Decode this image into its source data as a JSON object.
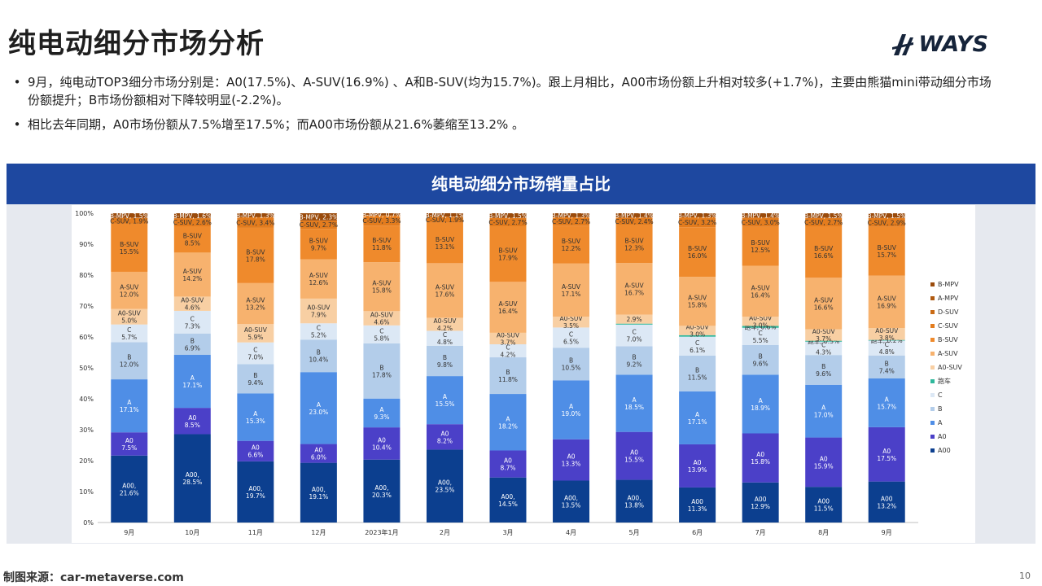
{
  "slide": {
    "title": "纯电动细分市场分析",
    "logo_text": "WAYS",
    "bullets": [
      "9月，纯电动TOP3细分市场分别是：A0(17.5%)、A-SUV(16.9%) 、A和B-SUV(均为15.7%)。跟上月相比，A00市场份额上升相对较多(+1.7%)，主要由熊猫mini带动细分市场份额提升；B市场份额相对下降较明显(-2.2%)。",
      "相比去年同期，A0市场份额从7.5%增至17.5%；而A00市场份额从21.6%萎缩至13.2% 。"
    ],
    "bullet_symbol": "•",
    "chart_header": "纯电动细分市场销量占比",
    "footer_source": "制图来源：car-metaverse.com",
    "page_number": "10"
  },
  "colors": {
    "header_bg": "#1e48a0",
    "panel_bg": "#e6e9ef",
    "logo": "#16243a"
  },
  "chart_data": {
    "type": "bar",
    "stacked": true,
    "percent": true,
    "categories": [
      "9月",
      "10月",
      "11月",
      "12月",
      "2023年1月",
      "2月",
      "3月",
      "4月",
      "5月",
      "6月",
      "7月",
      "8月",
      "9月"
    ],
    "yticks": [
      "0%",
      "10%",
      "20%",
      "30%",
      "40%",
      "50%",
      "60%",
      "70%",
      "80%",
      "90%",
      "100%"
    ],
    "ylim": [
      0,
      100
    ],
    "legend_position": "right",
    "series": [
      {
        "name": "A00",
        "color": "#0c3f8f",
        "text": "#ffffff",
        "values": [
          21.6,
          28.5,
          19.7,
          19.1,
          20.3,
          23.5,
          14.5,
          13.5,
          13.8,
          11.3,
          12.9,
          11.5,
          13.2
        ],
        "labels": [
          "A00,\n21.6%",
          "A00,\n28.5%",
          "A00,\n19.7%",
          "A00,\n19.1%",
          "A00,\n20.3%",
          "A00,\n23.5%",
          "A00,\n14.5%",
          "A00,\n13.5%",
          "A00,\n13.8%",
          "A00\n11.3%",
          "A00\n12.9%",
          "A00\n11.5%",
          "A00\n13.2%"
        ]
      },
      {
        "name": "A0",
        "color": "#4b40c8",
        "text": "#ffffff",
        "values": [
          7.5,
          8.5,
          6.6,
          6.0,
          10.4,
          8.2,
          8.7,
          13.3,
          15.5,
          13.9,
          15.8,
          15.9,
          17.5
        ],
        "labels": [
          "A0\n7.5%",
          "A0\n8.5%",
          "A0\n6.6%",
          "A0\n6.0%",
          "A0\n10.4%",
          "A0\n8.2%",
          "A0\n8.7%",
          "A0\n13.3%",
          "A0\n15.5%",
          "A0\n13.9%",
          "A0\n15.8%",
          "A0\n15.9%",
          "A0\n17.5%"
        ]
      },
      {
        "name": "A",
        "color": "#4f8ee6",
        "text": "#ffffff",
        "values": [
          17.1,
          17.1,
          15.3,
          23.0,
          9.3,
          15.5,
          18.2,
          19.0,
          18.5,
          17.1,
          18.9,
          17.0,
          15.7
        ],
        "labels": [
          "A\n17.1%",
          "A\n17.1%",
          "A\n15.3%",
          "A\n23.0%",
          "A\n9.3%",
          "A\n15.5%",
          "A\n18.2%",
          "A\n19.0%",
          "A\n18.5%",
          "A\n17.1%",
          "A\n18.9%",
          "A\n17.0%",
          "A\n15.7%"
        ]
      },
      {
        "name": "B",
        "color": "#b3cdea",
        "text": "#333333",
        "values": [
          12.0,
          6.9,
          9.4,
          10.4,
          17.8,
          9.8,
          11.8,
          10.5,
          9.2,
          11.5,
          9.6,
          9.6,
          7.4
        ],
        "labels": [
          "B\n12.0%",
          "B\n6.9%",
          "B\n9.4%",
          "B\n10.4%",
          "B\n17.8%",
          "B\n9.8%",
          "B\n11.8%",
          "B\n10.5%",
          "B\n9.2%",
          "B\n11.5%",
          "B\n9.6%",
          "B\n9.6%",
          "B\n7.4%"
        ]
      },
      {
        "name": "C",
        "color": "#dce8f5",
        "text": "#333333",
        "values": [
          5.7,
          7.3,
          7.0,
          5.2,
          5.8,
          4.8,
          4.2,
          6.5,
          7.0,
          6.1,
          5.5,
          4.3,
          4.8
        ],
        "labels": [
          "C\n5.7%",
          "C\n7.3%",
          "C\n7.0%",
          "C\n5.2%",
          "C\n5.8%",
          "C\n4.8%",
          "C\n4.2%",
          "C\n6.5%",
          "C\n7.0%",
          "C\n6.1%",
          "C\n5.5%",
          "C\n4.3%",
          "C\n4.8%"
        ]
      },
      {
        "name": "跑车",
        "color": "#2fb89c",
        "text": "#333333",
        "values": [
          0,
          0,
          0,
          0,
          0,
          0,
          0,
          0,
          0.3,
          0.5,
          0.6,
          0.3,
          0.2
        ],
        "labels": [
          "",
          "",
          "",
          "",
          "",
          "",
          "",
          "",
          "",
          "",
          "跑车, 0.6%",
          "跑车, 0.3%",
          "跑车, 0.2%"
        ]
      },
      {
        "name": "A0-SUV",
        "color": "#f8cfa3",
        "text": "#333333",
        "values": [
          5.0,
          4.6,
          5.9,
          7.9,
          4.6,
          4.2,
          3.7,
          3.5,
          2.9,
          3.0,
          3.0,
          3.7,
          3.8
        ],
        "labels": [
          "A0-SUV\n5.0%",
          "A0-SUV\n4.6%",
          "A0-SUV\n5.9%",
          "A0-SUV\n7.9%",
          "A0-SUV\n4.6%",
          "A0-SUV\n4.2%",
          "A0-SUV\n3.7%",
          "A0-SUV\n3.5%",
          "2.9%",
          "A0-SUV\n3.0%",
          "A0-SUV\n3.0%",
          "A0-SUV\n3.7%",
          "A0-SUV\n3.8%"
        ]
      },
      {
        "name": "A-SUV",
        "color": "#f7b26e",
        "text": "#333333",
        "values": [
          12.0,
          14.2,
          13.2,
          12.6,
          15.8,
          17.6,
          16.4,
          17.1,
          16.7,
          15.8,
          16.4,
          16.6,
          16.9
        ],
        "labels": [
          "A-SUV\n12.0%",
          "A-SUV\n14.2%",
          "A-SUV\n13.2%",
          "A-SUV\n12.6%",
          "A-SUV\n15.8%",
          "A-SUV\n17.6%",
          "A-SUV\n16.4%",
          "A-SUV\n17.1%",
          "A-SUV\n16.7%",
          "A-SUV\n15.8%",
          "A-SUV\n16.4%",
          "A-SUV\n16.6%",
          "A-SUV\n16.9%"
        ]
      },
      {
        "name": "B-SUV",
        "color": "#ef8a2c",
        "text": "#333333",
        "values": [
          15.5,
          8.5,
          17.8,
          9.7,
          11.8,
          13.1,
          17.9,
          12.2,
          12.3,
          16.0,
          12.5,
          16.6,
          15.7
        ],
        "labels": [
          "B-SUV\n15.5%",
          "B-SUV\n8.5%",
          "B-SUV\n17.8%",
          "B-SUV\n9.7%",
          "B-SUV\n11.8%",
          "B-SUV\n13.1%",
          "B-SUV\n17.9%",
          "B-SUV\n12.2%",
          "B-SUV\n12.3%",
          "B-SUV\n16.0%",
          "B-SUV\n12.5%",
          "B-SUV\n16.6%",
          "B-SUV\n15.7%"
        ]
      },
      {
        "name": "C-SUV",
        "color": "#e37c1e",
        "text": "#333333",
        "values": [
          1.9,
          2.6,
          3.4,
          2.7,
          3.3,
          1.9,
          2.7,
          2.7,
          2.4,
          3.2,
          3.0,
          2.7,
          2.9
        ],
        "labels": [
          "C-SUV, 1.9%",
          "C-SUV, 2.6%",
          "C-SUV, 3.4%",
          "C-SUV, 2.7%",
          "C-SUV, 3.3%",
          "C-SUV, 1.9%",
          "C-SUV, 2.7%",
          "C-SUV, 2.7%",
          "C-SUV, 2.4%",
          "C-SUV, 3.2%",
          "C-SUV, 3.0%",
          "C-SUV, 2.7%",
          "C-SUV, 2.9%"
        ]
      },
      {
        "name": "D-SUV",
        "color": "#c96a14",
        "text": "#333333",
        "values": [
          0,
          0,
          0,
          0,
          0,
          0,
          0,
          0,
          0,
          0,
          0,
          0,
          0
        ],
        "labels": [
          "",
          "",
          "",
          "",
          "",
          "",
          "",
          "",
          "",
          "",
          "",
          "",
          ""
        ]
      },
      {
        "name": "A-MPV",
        "color": "#b05a10",
        "text": "#333333",
        "values": [
          0,
          0,
          0,
          0,
          0,
          0,
          0,
          0,
          0,
          0,
          0,
          0,
          0
        ],
        "labels": [
          "",
          "",
          "",
          "",
          "",
          "",
          "",
          "",
          "",
          "",
          "",
          "",
          ""
        ]
      },
      {
        "name": "B-MPV",
        "color": "#9a4b0c",
        "text": "#ffffff",
        "values": [
          1.5,
          1.6,
          1.3,
          2.3,
          0.7,
          1.1,
          1.5,
          1.3,
          1.4,
          1.3,
          1.4,
          1.5,
          1.5
        ],
        "labels": [
          "B-MPV, 1.5%",
          "B-MPV, 1.6%",
          "B-MPV, 1.3%",
          "B-MPV, 2.3%",
          "B-MPV, 0.7%",
          "B-MPV, 1.1%",
          "B-MPV, 1.5%",
          "B-MPV, 1.3%",
          "B-MPV, 1.4%",
          "B-MPV, 1.3%",
          "B-MPV, 1.4%",
          "B-MPV, 1.5%",
          "B-MPV, 1.5%"
        ]
      }
    ],
    "legend_order": [
      "B-MPV",
      "A-MPV",
      "D-SUV",
      "C-SUV",
      "B-SUV",
      "A-SUV",
      "A0-SUV",
      "跑车",
      "C",
      "B",
      "A",
      "A0",
      "A00"
    ]
  }
}
